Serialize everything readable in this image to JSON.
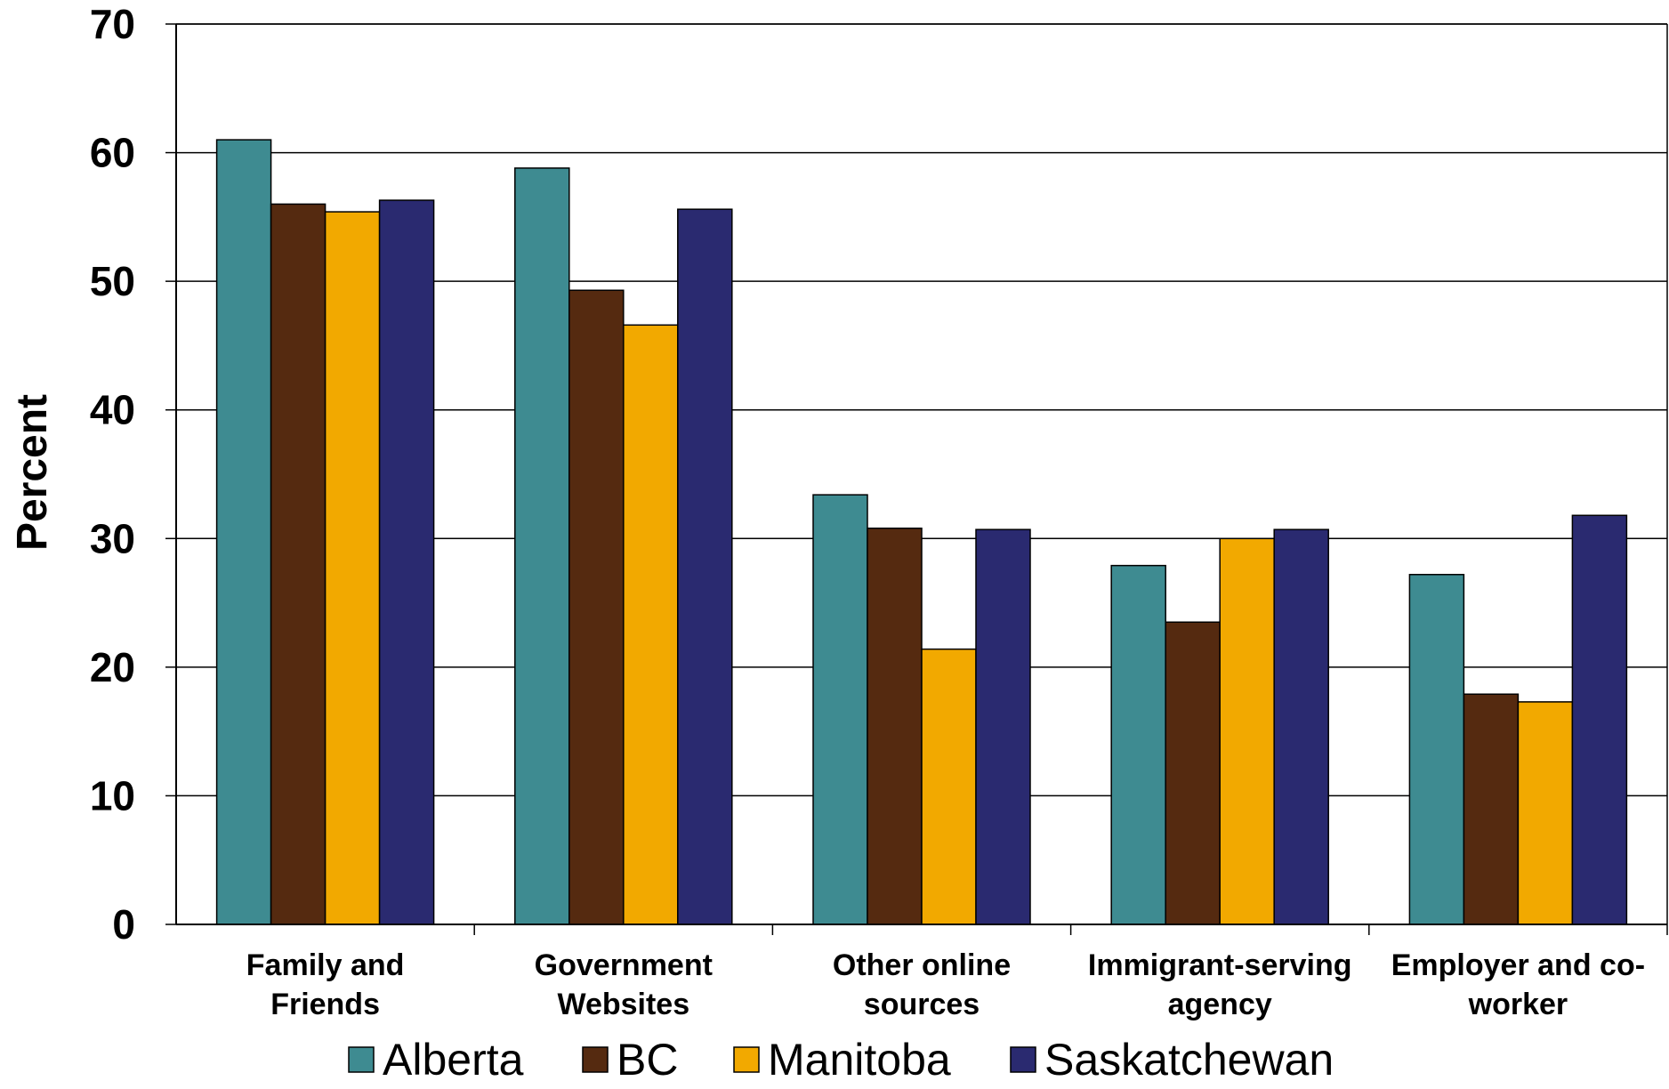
{
  "chart_data": {
    "type": "bar",
    "ylabel": "Percent",
    "ylim": [
      0,
      70
    ],
    "yticks": [
      0,
      10,
      20,
      30,
      40,
      50,
      60,
      70
    ],
    "grid": true,
    "legend_position": "bottom",
    "categories": [
      [
        "Family and",
        "Friends"
      ],
      [
        "Government",
        "Websites"
      ],
      [
        "Other online",
        "sources"
      ],
      [
        "Immigrant-serving",
        "agency"
      ],
      [
        "Employer and co-",
        "worker"
      ]
    ],
    "series": [
      {
        "name": "Alberta",
        "color": "#3E8B91",
        "values": [
          61.0,
          58.8,
          33.4,
          27.9,
          27.2
        ]
      },
      {
        "name": "BC",
        "color": "#552A10",
        "values": [
          56.0,
          49.3,
          30.8,
          23.5,
          17.9
        ]
      },
      {
        "name": "Manitoba",
        "color": "#F2A900",
        "values": [
          55.4,
          46.6,
          21.4,
          30.0,
          17.3
        ]
      },
      {
        "name": "Saskatchewan",
        "color": "#2A2A70",
        "values": [
          56.3,
          55.6,
          30.7,
          30.7,
          31.8
        ]
      }
    ]
  }
}
